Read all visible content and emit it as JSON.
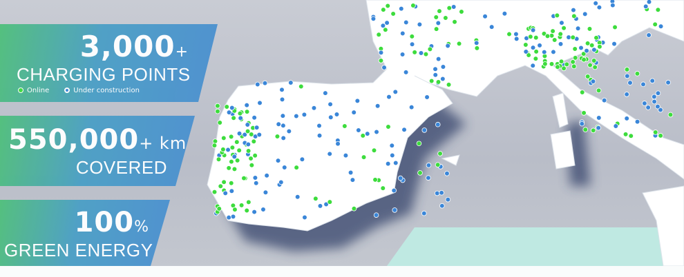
{
  "stats": [
    {
      "value": "3,000",
      "suffix": "+",
      "label": "CHARGING POINTS"
    },
    {
      "value": "550,000",
      "suffix": "+ km",
      "label": "COVERED"
    },
    {
      "value": "100",
      "suffix": "%",
      "label": "GREEN ENERGY"
    }
  ],
  "legend": [
    {
      "label": "Online",
      "color": "#3ddc3d",
      "icon": "green-dot-icon"
    },
    {
      "label": "Under construction",
      "color": "#3a86d8",
      "icon": "blue-dot-icon"
    }
  ],
  "colors": {
    "online": "#3ddc3d",
    "construction": "#3a86d8",
    "land": "#ffffff",
    "sea": "#c3c7d0",
    "shallow": "#bfe9e2"
  }
}
